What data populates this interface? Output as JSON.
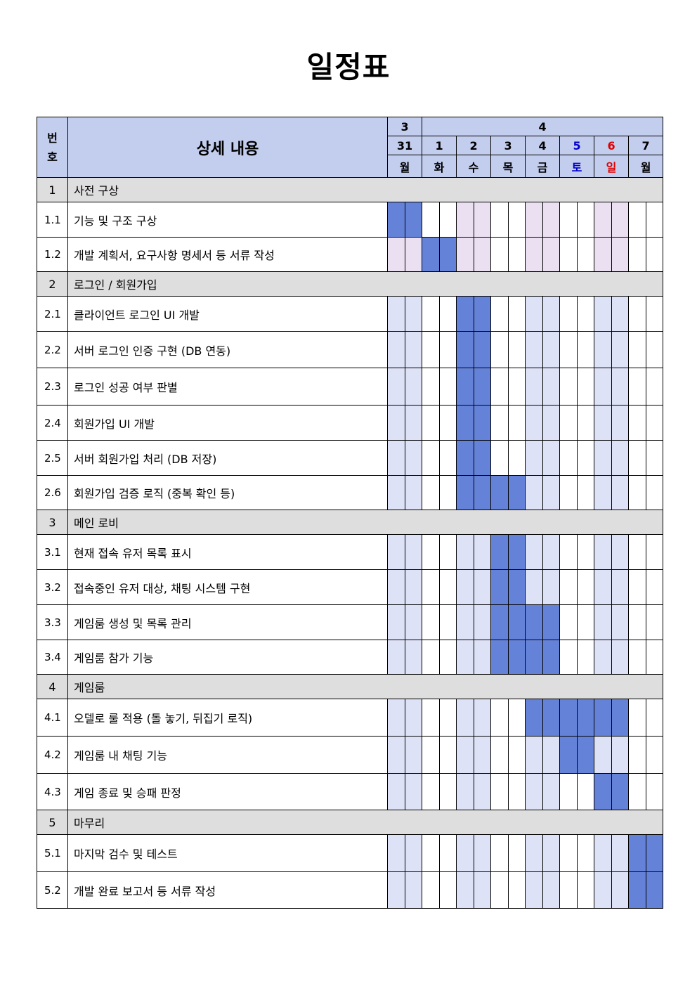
{
  "title": "일정표",
  "table": {
    "header": {
      "num_label": "번\n호",
      "content_label": "상세 내용",
      "months": [
        {
          "label": "3",
          "days": 1
        },
        {
          "label": "4",
          "days": 7
        }
      ],
      "days": [
        {
          "date": "31",
          "weekday": "월",
          "color": "black"
        },
        {
          "date": "1",
          "weekday": "화",
          "color": "black"
        },
        {
          "date": "2",
          "weekday": "수",
          "color": "black"
        },
        {
          "date": "3",
          "weekday": "목",
          "color": "black"
        },
        {
          "date": "4",
          "weekday": "금",
          "color": "black"
        },
        {
          "date": "5",
          "weekday": "토",
          "color": "#0000cc"
        },
        {
          "date": "6",
          "weekday": "일",
          "color": "#e00000"
        },
        {
          "date": "7",
          "weekday": "월",
          "color": "black"
        }
      ]
    },
    "colors": {
      "header_bg": "#c3cdee",
      "section_bg": "#dedede",
      "task_bar": "#6582d9",
      "light_blue": "#dde2f6",
      "light_pink": "#ebe0f2"
    },
    "rows": [
      {
        "type": "section",
        "num": "1",
        "desc": "사전 구상"
      },
      {
        "type": "task",
        "num": "1.1",
        "desc": "기능 및 구조 구상",
        "cells": "BBWWPPWWPPWWPPWW"
      },
      {
        "type": "task",
        "num": "1.2",
        "desc": "개발 계획서, 요구사항 명세서 등 서류 작성",
        "cells": "PPBBPPWWPPWWPPWW"
      },
      {
        "type": "section",
        "num": "2",
        "desc": "로그인 / 회원가입"
      },
      {
        "type": "task",
        "num": "2.1",
        "desc": "클라이언트 로그인 UI 개발",
        "cells": "LLWWBBWWLLWWLLWW"
      },
      {
        "type": "task",
        "num": "2.2",
        "desc": "서버 로그인 인증 구현 (DB 연동)",
        "cells": "LLWWBBWWLLWWLLWW"
      },
      {
        "type": "task",
        "num": "2.3",
        "desc": "로그인 성공 여부 판별",
        "cells": "LLWWBBWWLLWWLLWW"
      },
      {
        "type": "task",
        "num": "2.4",
        "desc": "회원가입 UI 개발",
        "cells": "LLWWBBWWLLWWLLWW"
      },
      {
        "type": "task",
        "num": "2.5",
        "desc": "서버 회원가입 처리 (DB 저장)",
        "cells": "LLWWBBWWLLWWLLWW"
      },
      {
        "type": "task",
        "num": "2.6",
        "desc": "회원가입 검증 로직 (중복 확인 등)",
        "cells": "LLWWBBBBLLWWLLWW"
      },
      {
        "type": "section",
        "num": "3",
        "desc": "메인 로비"
      },
      {
        "type": "task",
        "num": "3.1",
        "desc": "현재 접속 유저 목록 표시",
        "cells": "LLWWLLBBLLWWLLWW"
      },
      {
        "type": "task",
        "num": "3.2",
        "desc": "접속중인 유저 대상, 채팅 시스템 구현",
        "cells": "LLWWLLBBLLWWLLWW"
      },
      {
        "type": "task",
        "num": "3.3",
        "desc": "게임룸 생성 및 목록 관리",
        "cells": "LLWWLLBBBBWWLLWW"
      },
      {
        "type": "task",
        "num": "3.4",
        "desc": "게임룸 참가 기능",
        "cells": "LLWWLLBBBBWWLLWW"
      },
      {
        "type": "section",
        "num": "4",
        "desc": "게임룸"
      },
      {
        "type": "task",
        "num": "4.1",
        "desc": "오델로 룰 적용 (돌 놓기, 뒤집기 로직)",
        "cells": "LLWWLLWWBBBBBBWW"
      },
      {
        "type": "task",
        "num": "4.2",
        "desc": "게임룸 내 채팅 기능",
        "cells": "LLWWLLWWLLBBLLWW"
      },
      {
        "type": "task",
        "num": "4.3",
        "desc": "게임 종료 및 승패 판정",
        "cells": "LLWWLLWWLLWWBBWW"
      },
      {
        "type": "section",
        "num": "5",
        "desc": "마무리"
      },
      {
        "type": "task",
        "num": "5.1",
        "desc": "마지막 검수 및 테스트",
        "cells": "LLWWLLWWLLWWLLBB"
      },
      {
        "type": "task",
        "num": "5.2",
        "desc": "개발 완료 보고서 등 서류 작성",
        "cells": "LLWWLLWWLLWWLLBB"
      }
    ]
  }
}
